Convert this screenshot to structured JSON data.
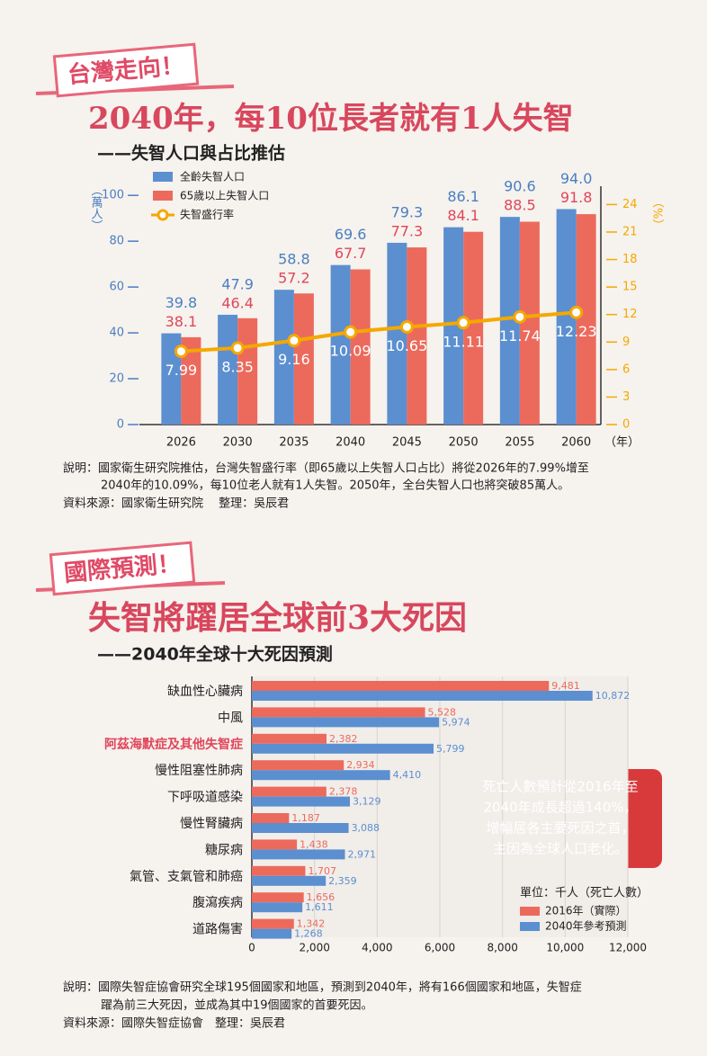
{
  "sections": [
    {
      "tag": "台灣走向！",
      "title": "2040年，每10位長者就有1人失智",
      "subtitle": "——失智人口與占比推估",
      "note": [
        "說明：國家衛生研究院推估，台灣失智盛行率（即65歲以上失智人口占比）將從2026年的7.99%增至",
        "2040年的10.09%，每10位老人就有1人失智。2050年，全台失智人口也將突破85萬人。"
      ],
      "source": "資料來源：國家衛生研究院　 整理：吳辰君"
    },
    {
      "tag": "國際預測！",
      "title": "失智將躍居全球前3大死因",
      "subtitle": "——2040年全球十大死因預測",
      "note": [
        "說明：國際失智症協會研究全球195個國家和地區，預測到2040年，將有166個國家和地區，失智症",
        "躍為前三大死因，並成為其中19個國家的首要死因。"
      ],
      "source": "資料來源：國際失智症協會　整理：吳辰君"
    }
  ],
  "chart_data": [
    {
      "type": "bar",
      "ylabel": "（萬人）",
      "y2label": "（%）",
      "xlabel": "（年）",
      "categories": [
        "2026",
        "2030",
        "2035",
        "2040",
        "2045",
        "2050",
        "2055",
        "2060"
      ],
      "series": [
        {
          "name": "全齡失智人口",
          "color": "#5b8fd0",
          "label_color": "#4a7fc1",
          "values": [
            39.8,
            47.9,
            58.8,
            69.6,
            79.3,
            86.1,
            90.6,
            94.0
          ],
          "value_labels": [
            "39.8",
            "47.9",
            "58.8",
            "69.6",
            "79.3",
            "86.1",
            "90.6",
            "94.0"
          ]
        },
        {
          "name": "65歲以上失智人口",
          "color": "#ec6a5c",
          "label_color": "#e0465a",
          "values": [
            38.1,
            46.4,
            57.2,
            67.7,
            77.3,
            84.1,
            88.5,
            91.8
          ],
          "value_labels": [
            "38.1",
            "46.4",
            "57.2",
            "67.7",
            "77.3",
            "84.1",
            "88.5",
            "91.8"
          ]
        },
        {
          "name": "失智盛行率",
          "color": "#f5a800",
          "axis": "y2",
          "values": [
            7.99,
            8.35,
            9.16,
            10.09,
            10.65,
            11.11,
            11.74,
            12.23
          ]
        }
      ],
      "ylim": [
        0,
        104
      ],
      "yticks": [
        0,
        20,
        40,
        60,
        80,
        100
      ],
      "y2lim": [
        0,
        26
      ],
      "y2ticks": [
        0,
        3,
        6,
        9,
        12,
        15,
        18,
        21,
        24
      ]
    },
    {
      "type": "barh",
      "categories": [
        "缺血性心臟病",
        "中風",
        "阿茲海默症及其他失智症",
        "慢性阻塞性肺病",
        "下呼吸道感染",
        "慢性腎臟病",
        "糖尿病",
        "氣管、支氣管和肺癌",
        "腹瀉疾病",
        "道路傷害"
      ],
      "highlight_index": 2,
      "highlight_color": "#e0465a",
      "series": [
        {
          "name": "2016年（實際）",
          "color": "#ec6a5c",
          "values": [
            9481,
            5528,
            2382,
            2934,
            2378,
            1187,
            1438,
            1707,
            1656,
            1342
          ],
          "value_labels": [
            "9,481",
            "5,528",
            "2,382",
            "2,934",
            "2,378",
            "1,187",
            "1,438",
            "1,707",
            "1,656",
            "1,342"
          ]
        },
        {
          "name": "2040年參考預測",
          "color": "#5b8fd0",
          "values": [
            10872,
            5974,
            5799,
            4410,
            3129,
            3088,
            2971,
            2359,
            1611,
            1268
          ],
          "value_labels": [
            "10,872",
            "5,974",
            "5,799",
            "4,410",
            "3,129",
            "3,088",
            "2,971",
            "2,359",
            "1,611",
            "1,268"
          ]
        }
      ],
      "legend_title": "單位：千人（死亡人數）",
      "xlim": [
        0,
        12000
      ],
      "xticks": [
        0,
        {
          "value": 2000,
          "label": "2,000"
        },
        {
          "value": 4000,
          "label": "4,000"
        },
        {
          "value": 6000,
          "label": "6,000"
        },
        {
          "value": 8000,
          "label": "8,000"
        },
        {
          "value": 10000,
          "label": "10,000"
        },
        {
          "value": 12000,
          "label": "12,000"
        }
      ],
      "grid": true,
      "annotation": [
        "死亡人數預計從2016年至",
        "2040年成長超過140%，",
        "增幅居各主要死因之首，",
        "主因為全球人口老化。"
      ]
    }
  ]
}
